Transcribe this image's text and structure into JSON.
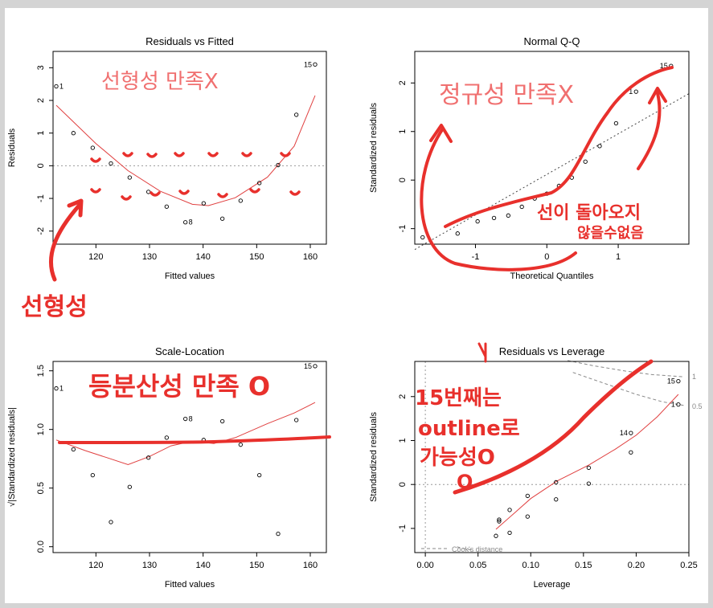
{
  "colors": {
    "smooth": "#e04040",
    "ink": "#e8302c",
    "ink_light": "#f07070",
    "ref": "#999999"
  },
  "chart_data": [
    {
      "id": "rvf",
      "type": "scatter",
      "title": "Residuals vs Fitted",
      "xlabel": "Fitted values",
      "ylabel": "Residuals",
      "xlim": [
        112,
        163
      ],
      "ylim": [
        -2.4,
        3.5
      ],
      "xticks": [
        120,
        130,
        140,
        150,
        160
      ],
      "yticks": [
        -2,
        -1,
        0,
        1,
        2,
        3
      ],
      "points": [
        [
          112.6,
          2.43
        ],
        [
          115.8,
          1.0
        ],
        [
          119.4,
          0.55
        ],
        [
          122.8,
          0.07
        ],
        [
          126.3,
          -0.36
        ],
        [
          129.8,
          -0.8
        ],
        [
          133.2,
          -1.25
        ],
        [
          136.7,
          -1.73
        ],
        [
          140.1,
          -1.15
        ],
        [
          143.6,
          -1.62
        ],
        [
          147.0,
          -1.07
        ],
        [
          150.5,
          -0.53
        ],
        [
          154.0,
          0.02
        ],
        [
          157.4,
          1.56
        ],
        [
          160.9,
          3.1
        ]
      ],
      "point_labels": [
        {
          "i": 0,
          "text": "1"
        },
        {
          "i": 7,
          "text": "8"
        },
        {
          "i": 14,
          "text": "15"
        }
      ],
      "smooth": [
        [
          112.6,
          1.85
        ],
        [
          120,
          0.68
        ],
        [
          126,
          -0.15
        ],
        [
          132,
          -0.78
        ],
        [
          138,
          -1.18
        ],
        [
          141,
          -1.22
        ],
        [
          146,
          -0.98
        ],
        [
          152,
          -0.35
        ],
        [
          157,
          0.6
        ],
        [
          160.9,
          2.15
        ]
      ],
      "hline": 0
    },
    {
      "id": "qq",
      "type": "scatter",
      "title": "Normal Q-Q",
      "xlabel": "Theoretical Quantiles",
      "ylabel": "Standardized residuals",
      "xlim": [
        -1.85,
        1.99
      ],
      "ylim": [
        -1.32,
        2.65
      ],
      "xticks": [
        -1,
        0,
        1
      ],
      "yticks": [
        -1,
        0,
        1,
        2
      ],
      "points": [
        [
          -1.74,
          -1.18
        ],
        [
          -1.25,
          -1.1
        ],
        [
          -0.97,
          -0.85
        ],
        [
          -0.74,
          -0.78
        ],
        [
          -0.54,
          -0.73
        ],
        [
          -0.35,
          -0.55
        ],
        [
          -0.17,
          -0.38
        ],
        [
          0.0,
          -0.28
        ],
        [
          0.17,
          -0.12
        ],
        [
          0.35,
          0.05
        ],
        [
          0.54,
          0.38
        ],
        [
          0.74,
          0.7
        ],
        [
          0.97,
          1.17
        ],
        [
          1.25,
          1.82
        ],
        [
          1.74,
          2.35
        ]
      ],
      "point_labels": [
        {
          "i": 13,
          "text": "1"
        },
        {
          "i": 14,
          "text": "15"
        }
      ],
      "refline": [
        [
          -1.85,
          -1.43
        ],
        [
          1.99,
          1.78
        ]
      ]
    },
    {
      "id": "sl",
      "type": "scatter",
      "title": "Scale-Location",
      "xlabel": "Fitted values",
      "ylabel": "√|Standardized residuals|",
      "xlim": [
        112,
        163
      ],
      "ylim": [
        -0.05,
        1.58
      ],
      "xticks": [
        120,
        130,
        140,
        150,
        160
      ],
      "yticks": [
        0.0,
        0.5,
        1.0,
        1.5
      ],
      "points": [
        [
          112.6,
          1.35
        ],
        [
          115.8,
          0.83
        ],
        [
          119.4,
          0.61
        ],
        [
          122.8,
          0.21
        ],
        [
          126.3,
          0.51
        ],
        [
          129.8,
          0.76
        ],
        [
          133.2,
          0.93
        ],
        [
          136.7,
          1.09
        ],
        [
          140.1,
          0.91
        ],
        [
          143.6,
          1.07
        ],
        [
          147.0,
          0.87
        ],
        [
          150.5,
          0.61
        ],
        [
          154.0,
          0.11
        ],
        [
          157.4,
          1.08
        ],
        [
          160.9,
          1.54
        ]
      ],
      "point_labels": [
        {
          "i": 0,
          "text": "1"
        },
        {
          "i": 7,
          "text": "8"
        },
        {
          "i": 14,
          "text": "15"
        }
      ],
      "smooth": [
        [
          112.6,
          0.91
        ],
        [
          118,
          0.82
        ],
        [
          122,
          0.76
        ],
        [
          126,
          0.7
        ],
        [
          130,
          0.77
        ],
        [
          134,
          0.86
        ],
        [
          138,
          0.9
        ],
        [
          142,
          0.88
        ],
        [
          146,
          0.93
        ],
        [
          152,
          1.05
        ],
        [
          157,
          1.14
        ],
        [
          160.9,
          1.23
        ]
      ]
    },
    {
      "id": "rvl",
      "type": "scatter",
      "title": "Residuals vs Leverage",
      "xlabel": "Leverage",
      "ylabel": "Standardized residuals",
      "xlim": [
        -0.01,
        0.25
      ],
      "ylim": [
        -1.55,
        2.8
      ],
      "xticks": [
        0.0,
        0.05,
        0.1,
        0.15,
        0.2,
        0.25
      ],
      "yticks": [
        -1,
        0,
        1,
        2
      ],
      "points": [
        [
          0.067,
          -1.17
        ],
        [
          0.07,
          -0.8
        ],
        [
          0.07,
          -0.84
        ],
        [
          0.08,
          -0.58
        ],
        [
          0.08,
          -1.1
        ],
        [
          0.097,
          -0.26
        ],
        [
          0.097,
          -0.73
        ],
        [
          0.124,
          0.05
        ],
        [
          0.124,
          -0.34
        ],
        [
          0.155,
          0.38
        ],
        [
          0.155,
          0.02
        ],
        [
          0.195,
          1.17
        ],
        [
          0.195,
          0.73
        ],
        [
          0.24,
          2.35
        ],
        [
          0.24,
          1.82
        ]
      ],
      "point_labels": [
        {
          "i": 11,
          "text": "14"
        },
        {
          "i": 13,
          "text": "15"
        },
        {
          "i": 14,
          "text": "1"
        }
      ],
      "smooth": [
        [
          0.067,
          -1.02
        ],
        [
          0.085,
          -0.64
        ],
        [
          0.1,
          -0.32
        ],
        [
          0.125,
          0.08
        ],
        [
          0.155,
          0.44
        ],
        [
          0.18,
          0.8
        ],
        [
          0.2,
          1.12
        ],
        [
          0.22,
          1.54
        ],
        [
          0.24,
          2.05
        ]
      ],
      "cook_upper_1": [
        [
          0.135,
          2.82
        ],
        [
          0.16,
          2.7
        ],
        [
          0.19,
          2.58
        ],
        [
          0.215,
          2.5
        ],
        [
          0.245,
          2.45
        ]
      ],
      "cook_upper_05": [
        [
          0.14,
          2.55
        ],
        [
          0.17,
          2.3
        ],
        [
          0.2,
          2.05
        ],
        [
          0.225,
          1.88
        ],
        [
          0.245,
          1.8
        ]
      ],
      "cook_lower": [
        [
          0.03,
          -1.42
        ],
        [
          0.045,
          -1.5
        ]
      ],
      "hline": 0,
      "vline": 0,
      "cook_labels": [
        "1",
        "0.5"
      ],
      "legend": "Cook's distance"
    }
  ],
  "annotations": {
    "rvf_title": "선형성 만족X",
    "rvf_arrow": "선형성",
    "qq_title": "정규성 만족X",
    "qq_note1": "선이 돌아오지",
    "qq_note2": "않을수없음",
    "sl_title": "등분산성 만족 O",
    "rvl_line1": "15번째는",
    "rvl_line2": "outline로",
    "rvl_line3": "가능성O",
    "rvl_line4": "O"
  }
}
